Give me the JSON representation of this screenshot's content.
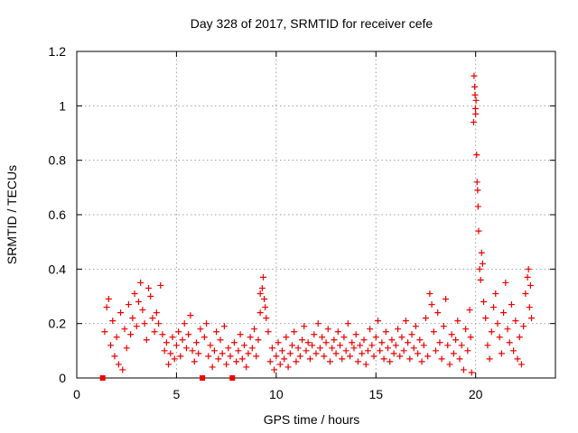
{
  "chart_data": {
    "type": "scatter",
    "title": "Day 328 of 2017, SRMTID for receiver cefe",
    "xlabel": "GPS time / hours",
    "ylabel": "SRMTID / TECUs",
    "xlim": [
      0,
      24
    ],
    "ylim": [
      0,
      1.2
    ],
    "xticks": [
      0,
      5,
      10,
      15,
      20
    ],
    "xtick_labels": [
      "0",
      "5",
      "10",
      "15",
      "20"
    ],
    "yticks": [
      0,
      0.2,
      0.4,
      0.6,
      0.8,
      1.0,
      1.2
    ],
    "ytick_labels": [
      "0",
      "0.2",
      "0.4",
      "0.6",
      "0.8",
      "1",
      "1.2"
    ],
    "grid": true,
    "marker": "+",
    "color": "#ee0000",
    "series": [
      {
        "name": "SRMTID",
        "points": [
          [
            1.3,
            0.0
          ],
          [
            6.3,
            0.0
          ],
          [
            7.8,
            0.0
          ],
          [
            1.4,
            0.17
          ],
          [
            1.5,
            0.26
          ],
          [
            1.6,
            0.29
          ],
          [
            1.7,
            0.12
          ],
          [
            1.8,
            0.21
          ],
          [
            1.9,
            0.08
          ],
          [
            2.0,
            0.15
          ],
          [
            2.1,
            0.05
          ],
          [
            2.2,
            0.24
          ],
          [
            2.3,
            0.03
          ],
          [
            2.4,
            0.18
          ],
          [
            2.5,
            0.11
          ],
          [
            2.6,
            0.27
          ],
          [
            2.7,
            0.16
          ],
          [
            2.8,
            0.22
          ],
          [
            2.9,
            0.31
          ],
          [
            3.0,
            0.19
          ],
          [
            3.1,
            0.28
          ],
          [
            3.2,
            0.35
          ],
          [
            3.3,
            0.25
          ],
          [
            3.4,
            0.2
          ],
          [
            3.5,
            0.14
          ],
          [
            3.6,
            0.33
          ],
          [
            3.7,
            0.3
          ],
          [
            3.8,
            0.22
          ],
          [
            3.9,
            0.17
          ],
          [
            4.0,
            0.24
          ],
          [
            4.1,
            0.2
          ],
          [
            4.2,
            0.34
          ],
          [
            4.3,
            0.16
          ],
          [
            4.4,
            0.1
          ],
          [
            4.5,
            0.13
          ],
          [
            4.6,
            0.05
          ],
          [
            4.7,
            0.09
          ],
          [
            4.8,
            0.15
          ],
          [
            4.9,
            0.07
          ],
          [
            5.0,
            0.12
          ],
          [
            5.1,
            0.17
          ],
          [
            5.2,
            0.08
          ],
          [
            5.3,
            0.14
          ],
          [
            5.4,
            0.2
          ],
          [
            5.5,
            0.11
          ],
          [
            5.6,
            0.16
          ],
          [
            5.7,
            0.23
          ],
          [
            5.8,
            0.1
          ],
          [
            5.9,
            0.06
          ],
          [
            6.0,
            0.13
          ],
          [
            6.1,
            0.09
          ],
          [
            6.2,
            0.18
          ],
          [
            6.4,
            0.15
          ],
          [
            6.5,
            0.2
          ],
          [
            6.6,
            0.08
          ],
          [
            6.7,
            0.12
          ],
          [
            6.8,
            0.04
          ],
          [
            6.9,
            0.1
          ],
          [
            7.0,
            0.17
          ],
          [
            7.1,
            0.07
          ],
          [
            7.2,
            0.14
          ],
          [
            7.3,
            0.09
          ],
          [
            7.4,
            0.19
          ],
          [
            7.5,
            0.05
          ],
          [
            7.6,
            0.11
          ],
          [
            7.7,
            0.08
          ],
          [
            7.9,
            0.13
          ],
          [
            8.0,
            0.06
          ],
          [
            8.1,
            0.1
          ],
          [
            8.2,
            0.16
          ],
          [
            8.3,
            0.07
          ],
          [
            8.4,
            0.12
          ],
          [
            8.5,
            0.04
          ],
          [
            8.6,
            0.09
          ],
          [
            8.7,
            0.15
          ],
          [
            8.8,
            0.11
          ],
          [
            8.9,
            0.18
          ],
          [
            9.0,
            0.08
          ],
          [
            9.1,
            0.14
          ],
          [
            9.2,
            0.24
          ],
          [
            9.2,
            0.31
          ],
          [
            9.3,
            0.33
          ],
          [
            9.35,
            0.37
          ],
          [
            9.4,
            0.29
          ],
          [
            9.45,
            0.26
          ],
          [
            9.5,
            0.22
          ],
          [
            9.6,
            0.17
          ],
          [
            9.7,
            0.06
          ],
          [
            9.8,
            0.11
          ],
          [
            9.9,
            0.03
          ],
          [
            10.0,
            0.08
          ],
          [
            10.1,
            0.13
          ],
          [
            10.2,
            0.05
          ],
          [
            10.3,
            0.1
          ],
          [
            10.4,
            0.07
          ],
          [
            10.5,
            0.15
          ],
          [
            10.6,
            0.04
          ],
          [
            10.7,
            0.09
          ],
          [
            10.8,
            0.12
          ],
          [
            10.9,
            0.17
          ],
          [
            11.0,
            0.06
          ],
          [
            11.1,
            0.11
          ],
          [
            11.2,
            0.08
          ],
          [
            11.3,
            0.14
          ],
          [
            11.4,
            0.19
          ],
          [
            11.5,
            0.1
          ],
          [
            11.6,
            0.13
          ],
          [
            11.7,
            0.07
          ],
          [
            11.8,
            0.12
          ],
          [
            11.9,
            0.16
          ],
          [
            12.0,
            0.09
          ],
          [
            12.1,
            0.2
          ],
          [
            12.2,
            0.11
          ],
          [
            12.3,
            0.15
          ],
          [
            12.4,
            0.08
          ],
          [
            12.5,
            0.13
          ],
          [
            12.6,
            0.18
          ],
          [
            12.7,
            0.06
          ],
          [
            12.8,
            0.11
          ],
          [
            12.9,
            0.14
          ],
          [
            13.0,
            0.09
          ],
          [
            13.1,
            0.17
          ],
          [
            13.2,
            0.12
          ],
          [
            13.3,
            0.07
          ],
          [
            13.4,
            0.15
          ],
          [
            13.5,
            0.1
          ],
          [
            13.6,
            0.2
          ],
          [
            13.7,
            0.08
          ],
          [
            13.8,
            0.13
          ],
          [
            13.9,
            0.11
          ],
          [
            14.0,
            0.16
          ],
          [
            14.1,
            0.06
          ],
          [
            14.2,
            0.12
          ],
          [
            14.3,
            0.09
          ],
          [
            14.4,
            0.14
          ],
          [
            14.5,
            0.05
          ],
          [
            14.6,
            0.1
          ],
          [
            14.7,
            0.18
          ],
          [
            14.8,
            0.12
          ],
          [
            14.9,
            0.08
          ],
          [
            15.0,
            0.15
          ],
          [
            15.1,
            0.21
          ],
          [
            15.2,
            0.1
          ],
          [
            15.3,
            0.13
          ],
          [
            15.4,
            0.07
          ],
          [
            15.5,
            0.17
          ],
          [
            15.6,
            0.11
          ],
          [
            15.7,
            0.06
          ],
          [
            15.8,
            0.14
          ],
          [
            15.9,
            0.09
          ],
          [
            16.0,
            0.12
          ],
          [
            16.1,
            0.18
          ],
          [
            16.2,
            0.08
          ],
          [
            16.3,
            0.15
          ],
          [
            16.4,
            0.1
          ],
          [
            16.5,
            0.21
          ],
          [
            16.6,
            0.13
          ],
          [
            16.7,
            0.07
          ],
          [
            16.8,
            0.16
          ],
          [
            16.9,
            0.11
          ],
          [
            17.0,
            0.19
          ],
          [
            17.1,
            0.09
          ],
          [
            17.2,
            0.14
          ],
          [
            17.3,
            0.06
          ],
          [
            17.4,
            0.12
          ],
          [
            17.5,
            0.22
          ],
          [
            17.6,
            0.08
          ],
          [
            17.7,
            0.31
          ],
          [
            17.8,
            0.27
          ],
          [
            17.9,
            0.17
          ],
          [
            18.0,
            0.1
          ],
          [
            18.1,
            0.24
          ],
          [
            18.2,
            0.13
          ],
          [
            18.3,
            0.07
          ],
          [
            18.4,
            0.19
          ],
          [
            18.5,
            0.29
          ],
          [
            18.6,
            0.12
          ],
          [
            18.7,
            0.05
          ],
          [
            18.8,
            0.16
          ],
          [
            18.9,
            0.09
          ],
          [
            19.0,
            0.14
          ],
          [
            19.1,
            0.21
          ],
          [
            19.2,
            0.07
          ],
          [
            19.3,
            0.12
          ],
          [
            19.4,
            0.03
          ],
          [
            19.5,
            0.18
          ],
          [
            19.6,
            0.1
          ],
          [
            19.7,
            0.25
          ],
          [
            19.75,
            0.15
          ],
          [
            19.8,
            0.02
          ],
          [
            19.9,
            0.94
          ],
          [
            19.92,
            1.11
          ],
          [
            19.95,
            1.07
          ],
          [
            19.97,
            1.04
          ],
          [
            19.99,
            0.99
          ],
          [
            20.0,
            0.97
          ],
          [
            20.02,
            1.02
          ],
          [
            20.05,
            0.82
          ],
          [
            20.07,
            0.72
          ],
          [
            20.1,
            0.69
          ],
          [
            20.12,
            0.63
          ],
          [
            20.15,
            0.54
          ],
          [
            20.2,
            0.4
          ],
          [
            20.25,
            0.36
          ],
          [
            20.3,
            0.46
          ],
          [
            20.35,
            0.42
          ],
          [
            20.4,
            0.28
          ],
          [
            20.5,
            0.22
          ],
          [
            20.6,
            0.12
          ],
          [
            20.7,
            0.07
          ],
          [
            20.8,
            0.17
          ],
          [
            20.9,
            0.26
          ],
          [
            21.0,
            0.31
          ],
          [
            21.1,
            0.2
          ],
          [
            21.2,
            0.15
          ],
          [
            21.3,
            0.09
          ],
          [
            21.4,
            0.24
          ],
          [
            21.5,
            0.35
          ],
          [
            21.6,
            0.18
          ],
          [
            21.7,
            0.13
          ],
          [
            21.8,
            0.27
          ],
          [
            21.9,
            0.1
          ],
          [
            22.0,
            0.21
          ],
          [
            22.1,
            0.07
          ],
          [
            22.2,
            0.15
          ],
          [
            22.3,
            0.05
          ],
          [
            22.4,
            0.19
          ],
          [
            22.5,
            0.31
          ],
          [
            22.6,
            0.37
          ],
          [
            22.65,
            0.4
          ],
          [
            22.7,
            0.26
          ],
          [
            22.75,
            0.34
          ],
          [
            22.8,
            0.22
          ]
        ]
      }
    ]
  }
}
